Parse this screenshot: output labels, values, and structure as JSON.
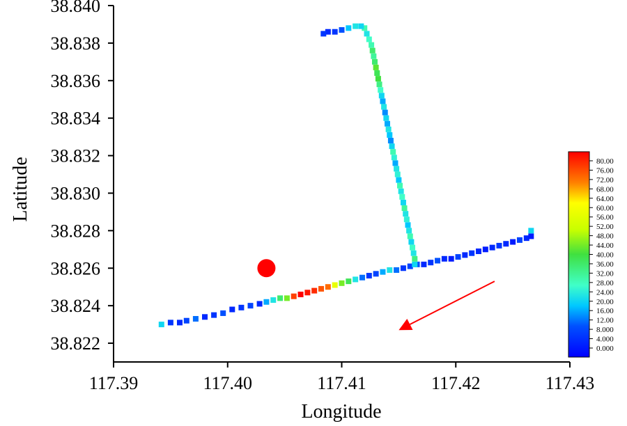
{
  "chart_data": {
    "type": "scatter",
    "xlabel": "Longitude",
    "ylabel": "Latitude",
    "xlim": [
      117.39,
      117.43
    ],
    "ylim": [
      38.821,
      38.84
    ],
    "x_ticks": [
      "117.39",
      "117.40",
      "117.41",
      "117.42",
      "117.43"
    ],
    "y_ticks": [
      "38.822",
      "38.824",
      "38.826",
      "38.828",
      "38.830",
      "38.832",
      "38.834",
      "38.836",
      "38.838",
      "38.840"
    ],
    "colorbar": {
      "min": 0,
      "max": 80,
      "labels": [
        "80.00",
        "76.00",
        "72.00",
        "68.00",
        "64.00",
        "60.00",
        "56.00",
        "52.00",
        "48.00",
        "44.00",
        "40.00",
        "36.00",
        "32.00",
        "28.00",
        "24.00",
        "20.00",
        "16.00",
        "12.00",
        "8.000",
        "4.000",
        "0.000"
      ]
    },
    "series": [
      {
        "points": [
          [
            117.3942,
            38.823,
            22
          ],
          [
            117.395,
            38.8231,
            8
          ],
          [
            117.3958,
            38.8231,
            6
          ],
          [
            117.3964,
            38.8232,
            10
          ],
          [
            117.3972,
            38.8233,
            14
          ],
          [
            117.398,
            38.8234,
            6
          ],
          [
            117.3988,
            38.8235,
            8
          ],
          [
            117.3996,
            38.8236,
            12
          ],
          [
            117.4004,
            38.8238,
            6
          ],
          [
            117.4012,
            38.8239,
            8
          ],
          [
            117.402,
            38.824,
            10
          ],
          [
            117.4028,
            38.8241,
            6
          ],
          [
            117.4034,
            38.8242,
            18
          ],
          [
            117.404,
            38.8243,
            24
          ],
          [
            117.4046,
            38.8244,
            36
          ],
          [
            117.4052,
            38.8244,
            44
          ],
          [
            117.4058,
            38.8245,
            74
          ],
          [
            117.4064,
            38.8246,
            80
          ],
          [
            117.407,
            38.8247,
            78
          ],
          [
            117.4076,
            38.8248,
            76
          ],
          [
            117.4082,
            38.8249,
            72
          ],
          [
            117.4088,
            38.825,
            70
          ],
          [
            117.4094,
            38.8251,
            56
          ],
          [
            117.41,
            38.8252,
            44
          ],
          [
            117.4106,
            38.8253,
            38
          ],
          [
            117.4112,
            38.8254,
            24
          ],
          [
            117.4118,
            38.8255,
            14
          ],
          [
            117.4124,
            38.8256,
            8
          ],
          [
            117.413,
            38.8257,
            10
          ],
          [
            117.4136,
            38.8258,
            18
          ],
          [
            117.4142,
            38.8259,
            24
          ],
          [
            117.4148,
            38.8259,
            14
          ],
          [
            117.4154,
            38.826,
            8
          ],
          [
            117.416,
            38.8261,
            10
          ],
          [
            117.4166,
            38.8262,
            12
          ],
          [
            117.4172,
            38.8262,
            6
          ],
          [
            117.4178,
            38.8263,
            8
          ],
          [
            117.4184,
            38.8264,
            12
          ],
          [
            117.419,
            38.8265,
            6
          ],
          [
            117.4196,
            38.8265,
            4
          ],
          [
            117.4202,
            38.8266,
            10
          ],
          [
            117.4208,
            38.8267,
            6
          ],
          [
            117.4214,
            38.8268,
            8
          ],
          [
            117.422,
            38.8269,
            6
          ],
          [
            117.4226,
            38.827,
            4
          ],
          [
            117.4232,
            38.8271,
            6
          ],
          [
            117.4238,
            38.8272,
            8
          ],
          [
            117.4244,
            38.8273,
            6
          ],
          [
            117.425,
            38.8274,
            4
          ],
          [
            117.4256,
            38.8275,
            10
          ],
          [
            117.4262,
            38.8276,
            6
          ],
          [
            117.4266,
            38.8277,
            4
          ],
          [
            117.4266,
            38.828,
            22
          ],
          [
            117.4164,
            38.8262,
            22
          ],
          [
            117.4164,
            38.8265,
            34
          ],
          [
            117.4163,
            38.8268,
            24
          ],
          [
            117.4162,
            38.8271,
            28
          ],
          [
            117.4161,
            38.8274,
            22
          ],
          [
            117.416,
            38.8277,
            30
          ],
          [
            117.4159,
            38.828,
            24
          ],
          [
            117.4158,
            38.8283,
            20
          ],
          [
            117.4157,
            38.8286,
            26
          ],
          [
            117.4156,
            38.8289,
            24
          ],
          [
            117.4155,
            38.8292,
            32
          ],
          [
            117.4154,
            38.8295,
            22
          ],
          [
            117.4153,
            38.8298,
            28
          ],
          [
            117.4152,
            38.8301,
            24
          ],
          [
            117.4151,
            38.8304,
            30
          ],
          [
            117.415,
            38.8307,
            20
          ],
          [
            117.4149,
            38.831,
            26
          ],
          [
            117.4148,
            38.8313,
            24
          ],
          [
            117.4147,
            38.8316,
            18
          ],
          [
            117.4146,
            38.8319,
            26
          ],
          [
            117.4145,
            38.8322,
            30
          ],
          [
            117.4144,
            38.8325,
            22
          ],
          [
            117.4143,
            38.8328,
            16
          ],
          [
            117.4142,
            38.8331,
            20
          ],
          [
            117.4141,
            38.8334,
            24
          ],
          [
            117.414,
            38.8337,
            18
          ],
          [
            117.4139,
            38.834,
            22
          ],
          [
            117.4138,
            38.8343,
            16
          ],
          [
            117.4137,
            38.8346,
            24
          ],
          [
            117.4136,
            38.8349,
            18
          ],
          [
            117.4135,
            38.8352,
            22
          ],
          [
            117.4134,
            38.8355,
            28
          ],
          [
            117.4133,
            38.8358,
            34
          ],
          [
            117.4132,
            38.8361,
            40
          ],
          [
            117.4131,
            38.8364,
            38
          ],
          [
            117.413,
            38.8367,
            42
          ],
          [
            117.4129,
            38.837,
            36
          ],
          [
            117.4128,
            38.8373,
            32
          ],
          [
            117.4127,
            38.8376,
            36
          ],
          [
            117.4126,
            38.8379,
            30
          ],
          [
            117.4124,
            38.8382,
            28
          ],
          [
            117.4122,
            38.8385,
            24
          ],
          [
            117.412,
            38.8388,
            30
          ],
          [
            117.4117,
            38.8389,
            22
          ],
          [
            117.4112,
            38.8389,
            24
          ],
          [
            117.4106,
            38.8388,
            20
          ],
          [
            117.41,
            38.8387,
            12
          ],
          [
            117.4094,
            38.8386,
            8
          ],
          [
            117.4088,
            38.8386,
            6
          ],
          [
            117.4084,
            38.8385,
            8
          ]
        ]
      }
    ],
    "annotations": [
      {
        "type": "circle",
        "x": 117.4034,
        "y": 38.826,
        "color": "#ff0000"
      },
      {
        "type": "arrow",
        "from": [
          117.4234,
          38.8253
        ],
        "to": [
          117.415,
          38.8227
        ],
        "color": "#ff0000"
      }
    ]
  }
}
